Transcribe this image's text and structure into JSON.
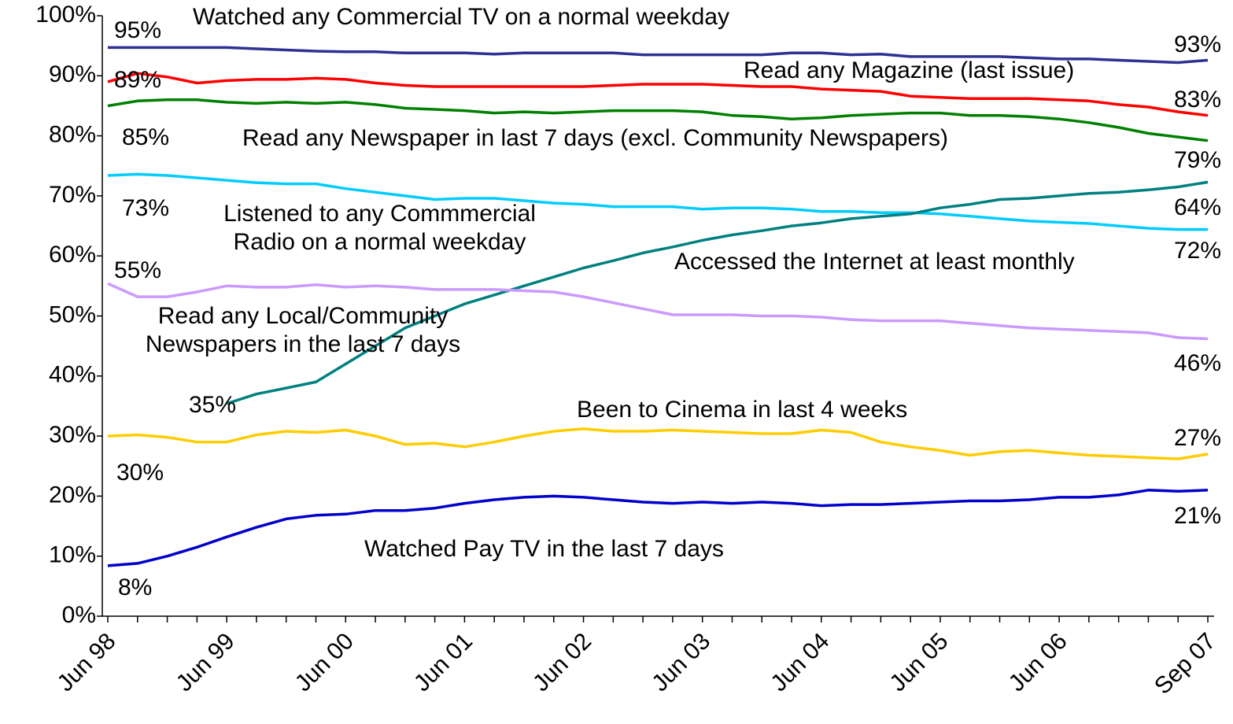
{
  "chart_data": {
    "type": "line",
    "categories": [
      "Jun 98",
      null,
      null,
      null,
      "Jun 99",
      null,
      null,
      null,
      "Jun 00",
      null,
      null,
      null,
      "Jun 01",
      null,
      null,
      null,
      "Jun 02",
      null,
      null,
      null,
      "Jun 03",
      null,
      null,
      null,
      "Jun 04",
      null,
      null,
      null,
      "Jun 05",
      null,
      null,
      null,
      "Jun 06",
      null,
      null,
      null,
      null,
      "Sep 07"
    ],
    "ylim": [
      0,
      100
    ],
    "yticks": [
      {
        "value": 0,
        "label": "0%"
      },
      {
        "value": 10,
        "label": "10%"
      },
      {
        "value": 20,
        "label": "20%"
      },
      {
        "value": 30,
        "label": "30%"
      },
      {
        "value": 40,
        "label": "40%"
      },
      {
        "value": 50,
        "label": "50%"
      },
      {
        "value": 60,
        "label": "60%"
      },
      {
        "value": 70,
        "label": "70%"
      },
      {
        "value": 80,
        "label": "80%"
      },
      {
        "value": 90,
        "label": "90%"
      },
      {
        "value": 100,
        "label": "100%"
      }
    ],
    "grid": false,
    "series": [
      {
        "name": "Watched any Commercial TV on a normal weekday",
        "color": "#2e3192",
        "values": [
          94.7,
          94.7,
          94.7,
          94.7,
          94.7,
          94.5,
          94.3,
          94.1,
          94.0,
          94.0,
          93.8,
          93.8,
          93.8,
          93.6,
          93.8,
          93.8,
          93.8,
          93.8,
          93.5,
          93.5,
          93.5,
          93.5,
          93.5,
          93.8,
          93.8,
          93.5,
          93.6,
          93.2,
          93.2,
          93.2,
          93.2,
          93.0,
          92.8,
          92.8,
          92.6,
          92.4,
          92.2,
          92.6
        ],
        "value_labels": [
          "95%",
          null,
          null,
          null,
          null,
          null,
          null,
          null,
          null,
          null,
          null,
          null,
          null,
          null,
          null,
          null,
          null,
          null,
          null,
          null,
          null,
          null,
          null,
          null,
          null,
          null,
          null,
          null,
          null,
          null,
          null,
          null,
          null,
          null,
          null,
          null,
          null,
          "93%"
        ]
      },
      {
        "name": "Read any Magazine (last issue)",
        "color": "#ff0000",
        "values": [
          89,
          90.4,
          89.8,
          88.8,
          89.2,
          89.4,
          89.4,
          89.6,
          89.4,
          88.8,
          88.4,
          88.2,
          88.2,
          88.2,
          88.2,
          88.2,
          88.2,
          88.4,
          88.6,
          88.6,
          88.6,
          88.4,
          88.2,
          88.2,
          87.8,
          87.6,
          87.4,
          86.6,
          86.4,
          86.2,
          86.2,
          86.2,
          86.0,
          85.8,
          85.2,
          84.8,
          84.0,
          83.4
        ],
        "value_labels": [
          "89%",
          null,
          null,
          null,
          null,
          null,
          null,
          null,
          null,
          null,
          null,
          null,
          null,
          null,
          null,
          null,
          null,
          null,
          null,
          null,
          null,
          null,
          null,
          null,
          null,
          null,
          null,
          null,
          null,
          null,
          null,
          null,
          null,
          null,
          null,
          null,
          null,
          "83%"
        ]
      },
      {
        "name": "Read any Newspaper in last 7 days (excl. Community Newspapers)",
        "color": "#008000",
        "values": [
          85,
          85.8,
          86,
          86,
          85.6,
          85.4,
          85.6,
          85.4,
          85.6,
          85.2,
          84.6,
          84.4,
          84.2,
          83.8,
          84.0,
          83.8,
          84.0,
          84.2,
          84.2,
          84.2,
          84.0,
          83.4,
          83.2,
          82.8,
          83.0,
          83.4,
          83.6,
          83.8,
          83.8,
          83.4,
          83.4,
          83.2,
          82.8,
          82.2,
          81.4,
          80.4,
          79.8,
          79.2
        ],
        "value_labels": [
          "85%",
          null,
          null,
          null,
          null,
          null,
          null,
          null,
          null,
          null,
          null,
          null,
          null,
          null,
          null,
          null,
          null,
          null,
          null,
          null,
          null,
          null,
          null,
          null,
          null,
          null,
          null,
          null,
          null,
          null,
          null,
          null,
          null,
          null,
          null,
          null,
          null,
          "79%"
        ]
      },
      {
        "name": "Listened to any Commmercial Radio on a normal weekday",
        "color": "#00ccff",
        "values": [
          73.4,
          73.6,
          73.4,
          73.0,
          72.6,
          72.2,
          72.0,
          72.0,
          71.2,
          70.6,
          70.0,
          69.4,
          69.6,
          69.6,
          69.2,
          68.8,
          68.6,
          68.2,
          68.2,
          68.2,
          67.8,
          68.0,
          68.0,
          67.8,
          67.4,
          67.4,
          67.2,
          67.2,
          67.0,
          66.6,
          66.2,
          65.8,
          65.6,
          65.4,
          65.0,
          64.6,
          64.4,
          64.4
        ],
        "value_labels": [
          "73%",
          null,
          null,
          null,
          null,
          null,
          null,
          null,
          null,
          null,
          null,
          null,
          null,
          null,
          null,
          null,
          null,
          null,
          null,
          null,
          null,
          null,
          null,
          null,
          null,
          null,
          null,
          null,
          null,
          null,
          null,
          null,
          null,
          null,
          null,
          null,
          null,
          "64%"
        ]
      },
      {
        "name": "Accessed the Internet at least monthly",
        "color": "#008080",
        "values": [
          null,
          null,
          null,
          null,
          35.4,
          37,
          38,
          39,
          42,
          45,
          48,
          50,
          52,
          53.5,
          55,
          56.5,
          58,
          59.2,
          60.5,
          61.5,
          62.6,
          63.5,
          64.2,
          65,
          65.5,
          66.2,
          66.6,
          67,
          68,
          68.6,
          69.4,
          69.6,
          70,
          70.4,
          70.6,
          71,
          71.5,
          72.3
        ],
        "value_labels": [
          null,
          null,
          null,
          null,
          "35%",
          null,
          null,
          null,
          null,
          null,
          null,
          null,
          null,
          null,
          null,
          null,
          null,
          null,
          null,
          null,
          null,
          null,
          null,
          null,
          null,
          null,
          null,
          null,
          null,
          null,
          null,
          null,
          null,
          null,
          null,
          null,
          null,
          "72%"
        ]
      },
      {
        "name": "Read any Local/Community Newspapers in the last 7 days",
        "color": "#cc99ff",
        "values": [
          55.4,
          53.2,
          53.2,
          54,
          55,
          54.8,
          54.8,
          55.2,
          54.8,
          55,
          54.8,
          54.4,
          54.4,
          54.4,
          54.2,
          54,
          53.2,
          52.2,
          51.2,
          50.2,
          50.2,
          50.2,
          50,
          50,
          49.8,
          49.4,
          49.2,
          49.2,
          49.2,
          48.8,
          48.4,
          48,
          47.8,
          47.6,
          47.4,
          47.2,
          46.4,
          46.2
        ],
        "value_labels": [
          "55%",
          null,
          null,
          null,
          null,
          null,
          null,
          null,
          null,
          null,
          null,
          null,
          null,
          null,
          null,
          null,
          null,
          null,
          null,
          null,
          null,
          null,
          null,
          null,
          null,
          null,
          null,
          null,
          null,
          null,
          null,
          null,
          null,
          null,
          null,
          null,
          null,
          "46%"
        ]
      },
      {
        "name": "Been to Cinema in last 4 weeks",
        "color": "#ffcc00",
        "values": [
          30,
          30.2,
          29.8,
          29,
          29,
          30.2,
          30.8,
          30.6,
          31,
          30,
          28.6,
          28.8,
          28.2,
          29,
          30,
          30.8,
          31.2,
          30.8,
          30.8,
          31,
          30.8,
          30.6,
          30.4,
          30.4,
          31,
          30.6,
          29,
          28.2,
          27.6,
          26.8,
          27.4,
          27.6,
          27.2,
          26.8,
          26.6,
          26.4,
          26.2,
          27
        ],
        "value_labels": [
          "30%",
          null,
          null,
          null,
          null,
          null,
          null,
          null,
          null,
          null,
          null,
          null,
          null,
          null,
          null,
          null,
          null,
          null,
          null,
          null,
          null,
          null,
          null,
          null,
          null,
          null,
          null,
          null,
          null,
          null,
          null,
          null,
          null,
          null,
          null,
          null,
          null,
          "27%"
        ]
      },
      {
        "name": "Watched Pay TV in the last 7 days",
        "color": "#0000cc",
        "values": [
          8.4,
          8.8,
          10,
          11.5,
          13.2,
          14.8,
          16.2,
          16.8,
          17,
          17.6,
          17.6,
          18,
          18.8,
          19.4,
          19.8,
          20,
          19.8,
          19.4,
          19,
          18.8,
          19,
          18.8,
          19,
          18.8,
          18.4,
          18.6,
          18.6,
          18.8,
          19,
          19.2,
          19.2,
          19.4,
          19.8,
          19.8,
          20.2,
          21,
          20.8,
          21
        ],
        "value_labels": [
          "8%",
          null,
          null,
          null,
          null,
          null,
          null,
          null,
          null,
          null,
          null,
          null,
          null,
          null,
          null,
          null,
          null,
          null,
          null,
          null,
          null,
          null,
          null,
          null,
          null,
          null,
          null,
          null,
          null,
          null,
          null,
          null,
          null,
          null,
          null,
          null,
          null,
          "21%"
        ]
      }
    ]
  }
}
